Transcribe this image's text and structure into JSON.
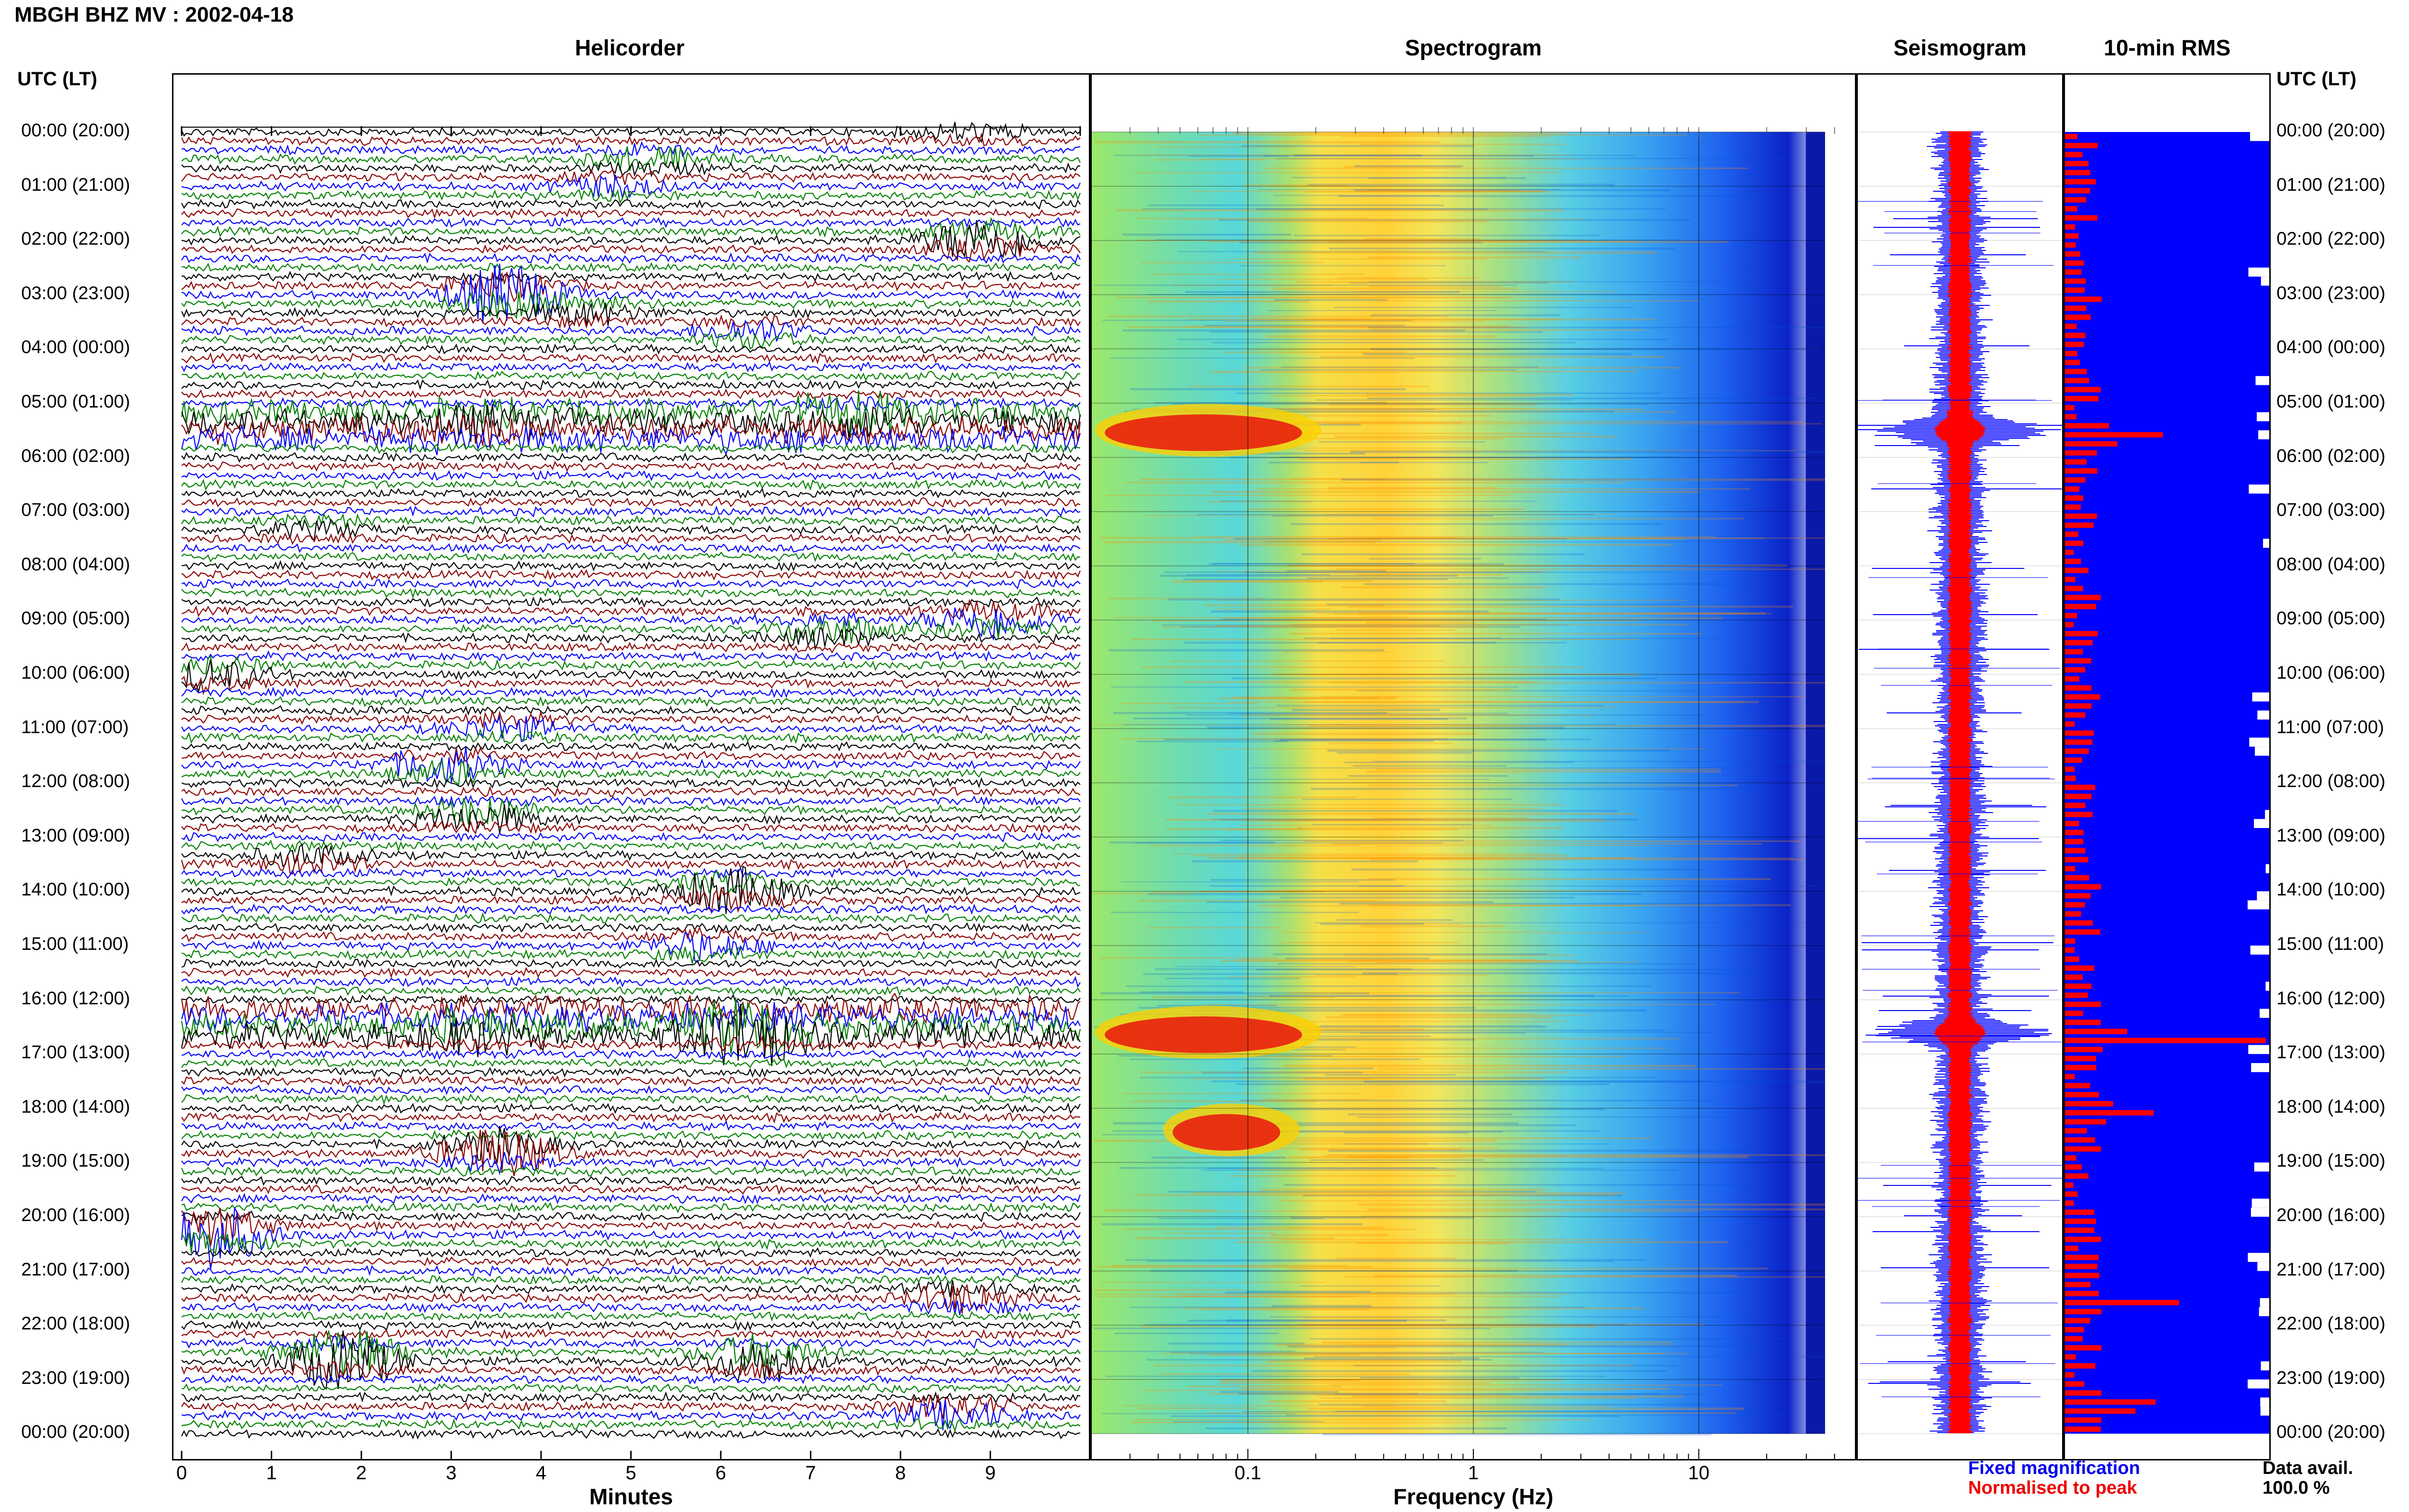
{
  "header": {
    "title": "MBGH BHZ MV : 2002-04-18"
  },
  "panels": {
    "helicorder": "Helicorder",
    "spectrogram": "Spectrogram",
    "seismogram": "Seismogram",
    "rms": "10-min RMS"
  },
  "time_axis_label": "UTC (LT)",
  "colors": {
    "blue": "#0000ff",
    "red": "#ff0000",
    "green": "#008000",
    "darkred": "#8b0000",
    "black": "#000000"
  },
  "chart_data": [
    {
      "type": "line",
      "name": "helicorder",
      "title": "Helicorder",
      "xlabel": "Minutes",
      "xticks": [
        "0",
        "1",
        "2",
        "3",
        "4",
        "5",
        "6",
        "7",
        "8",
        "9"
      ],
      "xlim": [
        0,
        10
      ],
      "ylabels": [
        "00:00 (20:00)",
        "01:00 (21:00)",
        "02:00 (22:00)",
        "03:00 (23:00)",
        "04:00 (00:00)",
        "05:00 (01:00)",
        "06:00 (02:00)",
        "07:00 (03:00)",
        "08:00 (04:00)",
        "09:00 (05:00)",
        "10:00 (06:00)",
        "11:00 (07:00)",
        "12:00 (08:00)",
        "13:00 (09:00)",
        "14:00 (10:00)",
        "15:00 (11:00)",
        "16:00 (12:00)",
        "17:00 (13:00)",
        "18:00 (14:00)",
        "19:00 (15:00)",
        "20:00 (16:00)",
        "21:00 (17:00)",
        "22:00 (18:00)",
        "23:00 (19:00)",
        "00:00 (20:00)"
      ],
      "trace_colors": [
        "black",
        "darkred",
        "blue",
        "green"
      ],
      "events": [
        {
          "hour": 0.0,
          "minute": 8.8,
          "amp": 0.4
        },
        {
          "hour": 0.5,
          "minute": 5.2,
          "amp": 0.6
        },
        {
          "hour": 1.0,
          "minute": 4.8,
          "amp": 0.5
        },
        {
          "hour": 2.0,
          "minute": 8.9,
          "amp": 1.2
        },
        {
          "hour": 3.0,
          "minute": 3.6,
          "amp": 1.6
        },
        {
          "hour": 3.3,
          "minute": 4.5,
          "amp": 0.6
        },
        {
          "hour": 3.7,
          "minute": 6.3,
          "amp": 0.6
        },
        {
          "hour": 5.2,
          "minute": 7.5,
          "amp": 0.8
        },
        {
          "hour": 5.4,
          "minute": 3.3,
          "amp": 0.5
        },
        {
          "hour": 7.3,
          "minute": 1.5,
          "amp": 0.4
        },
        {
          "hour": 9.0,
          "minute": 9.0,
          "amp": 1.0
        },
        {
          "hour": 9.2,
          "minute": 7.2,
          "amp": 0.8
        },
        {
          "hour": 10.0,
          "minute": 0.3,
          "amp": 0.8
        },
        {
          "hour": 11.0,
          "minute": 3.6,
          "amp": 0.6
        },
        {
          "hour": 11.7,
          "minute": 2.9,
          "amp": 1.0
        },
        {
          "hour": 12.6,
          "minute": 3.3,
          "amp": 0.9
        },
        {
          "hour": 13.4,
          "minute": 1.4,
          "amp": 0.6
        },
        {
          "hour": 14.0,
          "minute": 6.1,
          "amp": 1.2
        },
        {
          "hour": 15.0,
          "minute": 5.8,
          "amp": 0.7
        },
        {
          "hour": 16.6,
          "minute": 6.3,
          "amp": 1.6
        },
        {
          "hour": 16.6,
          "minute": 3.2,
          "amp": 0.6
        },
        {
          "hour": 18.8,
          "minute": 3.5,
          "amp": 1.4
        },
        {
          "hour": 20.3,
          "minute": 0.3,
          "amp": 1.8
        },
        {
          "hour": 21.5,
          "minute": 8.7,
          "amp": 0.7
        },
        {
          "hour": 22.6,
          "minute": 1.8,
          "amp": 1.8
        },
        {
          "hour": 22.6,
          "minute": 6.4,
          "amp": 1.2
        },
        {
          "hour": 23.6,
          "minute": 8.6,
          "amp": 0.8
        }
      ]
    },
    {
      "type": "heatmap",
      "name": "spectrogram",
      "title": "Spectrogram",
      "xlabel": "Frequency (Hz)",
      "xscale": "log",
      "xticks": [
        "0.1",
        "1",
        "10"
      ],
      "xlim": [
        0.02,
        50
      ],
      "hot_spots": [
        {
          "hour": 5.5,
          "fmin": 0.02,
          "fmax": 0.15
        },
        {
          "hour": 16.6,
          "fmin": 0.02,
          "fmax": 0.15
        },
        {
          "hour": 18.4,
          "fmin": 0.04,
          "fmax": 0.12
        }
      ]
    },
    {
      "type": "line",
      "name": "seismogram",
      "title": "Seismogram",
      "legend": [
        "Fixed magnification",
        "Normalised to peak"
      ],
      "legend_placement": "bottom",
      "peaks_hours": [
        5.5,
        16.6
      ]
    },
    {
      "type": "bar",
      "name": "rms",
      "title": "10-min RMS",
      "orientation": "horizontal",
      "availability_label": "Data avail.",
      "availability_value": "100.0 %",
      "peaks_hours": [
        5.5,
        16.6,
        18.0,
        21.5,
        23.4
      ]
    }
  ]
}
